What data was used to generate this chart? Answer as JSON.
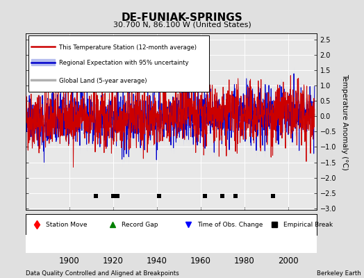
{
  "title": "DE-FUNIAK-SPRINGS",
  "subtitle": "30.700 N, 86.100 W (United States)",
  "ylabel": "Temperature Anomaly (°C)",
  "footnote_left": "Data Quality Controlled and Aligned at Breakpoints",
  "footnote_right": "Berkeley Earth",
  "xlim": [
    1880,
    2013
  ],
  "ylim": [
    -3.05,
    2.7
  ],
  "yticks": [
    -3,
    -2.5,
    -2,
    -1.5,
    -1,
    -0.5,
    0,
    0.5,
    1,
    1.5,
    2,
    2.5
  ],
  "xticks": [
    1900,
    1920,
    1940,
    1960,
    1980,
    2000
  ],
  "bg_color": "#e0e0e0",
  "plot_bg_color": "#e8e8e8",
  "grid_color": "#ffffff",
  "red_color": "#cc0000",
  "blue_color": "#0000cc",
  "blue_fill_color": "#b0b8ee",
  "gray_color": "#b0b0b0",
  "empirical_break_years": [
    1912,
    1920,
    1922,
    1941,
    1962,
    1970,
    1976,
    1993
  ],
  "seed": 42
}
